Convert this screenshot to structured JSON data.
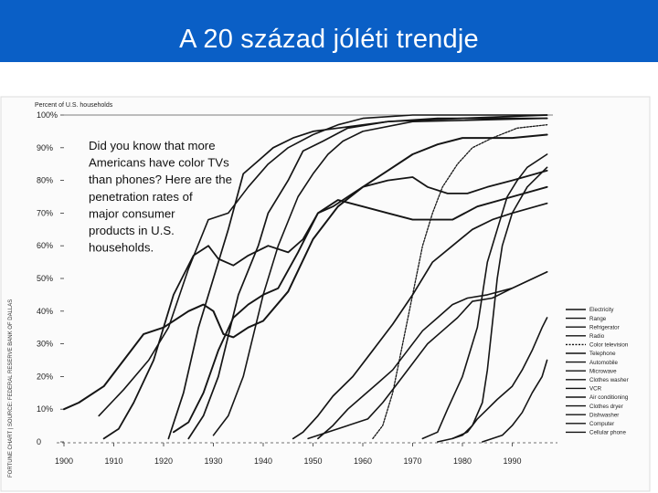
{
  "slide": {
    "title": "A 20 század jóléti trendje",
    "header_color": "#0a5fc6"
  },
  "chart_data": {
    "type": "line",
    "title": "",
    "ylabel": "Percent of U.S. households",
    "xlabel": "",
    "xlim": [
      1900,
      2000
    ],
    "ylim": [
      0,
      100
    ],
    "x_ticks": [
      "1900",
      "1910",
      "1920",
      "1930",
      "1940",
      "1950",
      "1960",
      "1970",
      "1980",
      "1990"
    ],
    "y_ticks": [
      "0",
      "10%",
      "20%",
      "30%",
      "40%",
      "50%",
      "60%",
      "70%",
      "80%",
      "90%",
      "100%"
    ],
    "annotation": [
      "Did you know that more",
      "Americans have color TVs",
      "than phones? Here are the",
      "penetration rates of",
      "major consumer",
      "products in U.S.",
      "households."
    ],
    "source_note": "FORTUNE CHART | SOURCE: FEDERAL RESERVE BANK OF DALLAS",
    "grid": false,
    "legend_position": "bottom-right",
    "series": [
      {
        "name": "Electricity",
        "points": [
          [
            1907,
            8
          ],
          [
            1912,
            16
          ],
          [
            1917,
            25
          ],
          [
            1921,
            35
          ],
          [
            1925,
            53
          ],
          [
            1929,
            68
          ],
          [
            1933,
            70
          ],
          [
            1937,
            78
          ],
          [
            1941,
            85
          ],
          [
            1945,
            90
          ],
          [
            1950,
            94
          ],
          [
            1955,
            97
          ],
          [
            1960,
            99
          ],
          [
            1970,
            100
          ],
          [
            1997,
            100
          ]
        ]
      },
      {
        "name": "Range",
        "points": [
          [
            1930,
            2
          ],
          [
            1933,
            8
          ],
          [
            1936,
            20
          ],
          [
            1940,
            45
          ],
          [
            1943,
            60
          ],
          [
            1947,
            75
          ],
          [
            1950,
            82
          ],
          [
            1953,
            88
          ],
          [
            1956,
            92
          ],
          [
            1960,
            95
          ],
          [
            1970,
            98
          ],
          [
            1997,
            99
          ]
        ]
      },
      {
        "name": "Refrigerator",
        "points": [
          [
            1925,
            1
          ],
          [
            1928,
            8
          ],
          [
            1931,
            20
          ],
          [
            1935,
            45
          ],
          [
            1939,
            60
          ],
          [
            1941,
            70
          ],
          [
            1945,
            80
          ],
          [
            1948,
            89
          ],
          [
            1952,
            92
          ],
          [
            1957,
            96
          ],
          [
            1965,
            98
          ],
          [
            1980,
            99
          ],
          [
            1997,
            100
          ]
        ]
      },
      {
        "name": "Radio",
        "points": [
          [
            1921,
            1
          ],
          [
            1924,
            15
          ],
          [
            1927,
            35
          ],
          [
            1930,
            50
          ],
          [
            1933,
            65
          ],
          [
            1936,
            82
          ],
          [
            1939,
            86
          ],
          [
            1942,
            90
          ],
          [
            1946,
            93
          ],
          [
            1950,
            95
          ],
          [
            1955,
            96
          ],
          [
            1965,
            98
          ],
          [
            1975,
            99
          ],
          [
            1997,
            99
          ]
        ]
      },
      {
        "name": "Color television",
        "points": [
          [
            1962,
            1
          ],
          [
            1964,
            5
          ],
          [
            1966,
            15
          ],
          [
            1968,
            30
          ],
          [
            1970,
            45
          ],
          [
            1972,
            60
          ],
          [
            1974,
            70
          ],
          [
            1976,
            78
          ],
          [
            1979,
            85
          ],
          [
            1982,
            90
          ],
          [
            1986,
            93
          ],
          [
            1991,
            96
          ],
          [
            1997,
            97
          ]
        ]
      },
      {
        "name": "Telephone",
        "points": [
          [
            1900,
            10
          ],
          [
            1903,
            12
          ],
          [
            1908,
            17
          ],
          [
            1912,
            25
          ],
          [
            1916,
            33
          ],
          [
            1920,
            35
          ],
          [
            1925,
            40
          ],
          [
            1928,
            42
          ],
          [
            1930,
            40
          ],
          [
            1932,
            33
          ],
          [
            1934,
            32
          ],
          [
            1937,
            35
          ],
          [
            1940,
            37
          ],
          [
            1945,
            46
          ],
          [
            1950,
            62
          ],
          [
            1955,
            72
          ],
          [
            1960,
            78
          ],
          [
            1965,
            83
          ],
          [
            1970,
            88
          ],
          [
            1975,
            91
          ],
          [
            1980,
            93
          ],
          [
            1986,
            93
          ],
          [
            1990,
            93
          ],
          [
            1997,
            94
          ]
        ]
      },
      {
        "name": "Automobile",
        "points": [
          [
            1908,
            1
          ],
          [
            1911,
            4
          ],
          [
            1914,
            12
          ],
          [
            1918,
            25
          ],
          [
            1922,
            45
          ],
          [
            1926,
            57
          ],
          [
            1929,
            60
          ],
          [
            1931,
            56
          ],
          [
            1934,
            54
          ],
          [
            1937,
            57
          ],
          [
            1941,
            60
          ],
          [
            1945,
            58
          ],
          [
            1948,
            62
          ],
          [
            1951,
            70
          ],
          [
            1954,
            72
          ],
          [
            1957,
            75
          ],
          [
            1960,
            78
          ],
          [
            1965,
            80
          ],
          [
            1970,
            81
          ],
          [
            1973,
            78
          ],
          [
            1977,
            76
          ],
          [
            1981,
            76
          ],
          [
            1985,
            78
          ],
          [
            1990,
            80
          ],
          [
            1997,
            83
          ]
        ]
      },
      {
        "name": "Microwave",
        "points": [
          [
            1972,
            1
          ],
          [
            1975,
            3
          ],
          [
            1977,
            10
          ],
          [
            1980,
            20
          ],
          [
            1983,
            35
          ],
          [
            1985,
            55
          ],
          [
            1987,
            65
          ],
          [
            1989,
            75
          ],
          [
            1991,
            80
          ],
          [
            1993,
            84
          ],
          [
            1997,
            88
          ]
        ]
      },
      {
        "name": "Clothes washer",
        "points": [
          [
            1922,
            3
          ],
          [
            1925,
            6
          ],
          [
            1928,
            15
          ],
          [
            1931,
            28
          ],
          [
            1934,
            38
          ],
          [
            1937,
            42
          ],
          [
            1940,
            45
          ],
          [
            1943,
            47
          ],
          [
            1947,
            58
          ],
          [
            1951,
            70
          ],
          [
            1955,
            74
          ],
          [
            1960,
            72
          ],
          [
            1965,
            70
          ],
          [
            1970,
            68
          ],
          [
            1974,
            68
          ],
          [
            1978,
            68
          ],
          [
            1983,
            72
          ],
          [
            1990,
            75
          ],
          [
            1997,
            78
          ]
        ]
      },
      {
        "name": "VCR",
        "points": [
          [
            1978,
            1
          ],
          [
            1980,
            2
          ],
          [
            1982,
            5
          ],
          [
            1984,
            12
          ],
          [
            1985,
            22
          ],
          [
            1987,
            50
          ],
          [
            1988,
            60
          ],
          [
            1990,
            70
          ],
          [
            1993,
            78
          ],
          [
            1997,
            84
          ]
        ]
      },
      {
        "name": "Air conditioning",
        "points": [
          [
            1951,
            1
          ],
          [
            1954,
            5
          ],
          [
            1957,
            10
          ],
          [
            1960,
            14
          ],
          [
            1963,
            18
          ],
          [
            1966,
            22
          ],
          [
            1969,
            28
          ],
          [
            1972,
            34
          ],
          [
            1975,
            38
          ],
          [
            1978,
            42
          ],
          [
            1981,
            44
          ],
          [
            1985,
            45
          ],
          [
            1990,
            47
          ],
          [
            1997,
            52
          ]
        ]
      },
      {
        "name": "Clothes dryer",
        "points": [
          [
            1946,
            1
          ],
          [
            1948,
            3
          ],
          [
            1951,
            8
          ],
          [
            1954,
            14
          ],
          [
            1958,
            20
          ],
          [
            1962,
            28
          ],
          [
            1966,
            36
          ],
          [
            1970,
            45
          ],
          [
            1974,
            55
          ],
          [
            1978,
            60
          ],
          [
            1982,
            65
          ],
          [
            1986,
            68
          ],
          [
            1990,
            70
          ],
          [
            1997,
            73
          ]
        ]
      },
      {
        "name": "Dishwasher",
        "points": [
          [
            1949,
            1
          ],
          [
            1953,
            3
          ],
          [
            1957,
            5
          ],
          [
            1961,
            7
          ],
          [
            1964,
            12
          ],
          [
            1967,
            18
          ],
          [
            1970,
            24
          ],
          [
            1973,
            30
          ],
          [
            1976,
            34
          ],
          [
            1979,
            38
          ],
          [
            1982,
            43
          ],
          [
            1986,
            44
          ],
          [
            1990,
            47
          ],
          [
            1997,
            52
          ]
        ]
      },
      {
        "name": "Computer",
        "points": [
          [
            1975,
            0
          ],
          [
            1978,
            1
          ],
          [
            1981,
            3
          ],
          [
            1983,
            7
          ],
          [
            1985,
            10
          ],
          [
            1987,
            13
          ],
          [
            1990,
            17
          ],
          [
            1992,
            22
          ],
          [
            1994,
            28
          ],
          [
            1996,
            35
          ],
          [
            1997,
            38
          ]
        ]
      },
      {
        "name": "Cellular phone",
        "points": [
          [
            1984,
            0
          ],
          [
            1986,
            1
          ],
          [
            1988,
            2
          ],
          [
            1990,
            5
          ],
          [
            1992,
            9
          ],
          [
            1994,
            15
          ],
          [
            1996,
            20
          ],
          [
            1997,
            25
          ]
        ]
      }
    ]
  }
}
